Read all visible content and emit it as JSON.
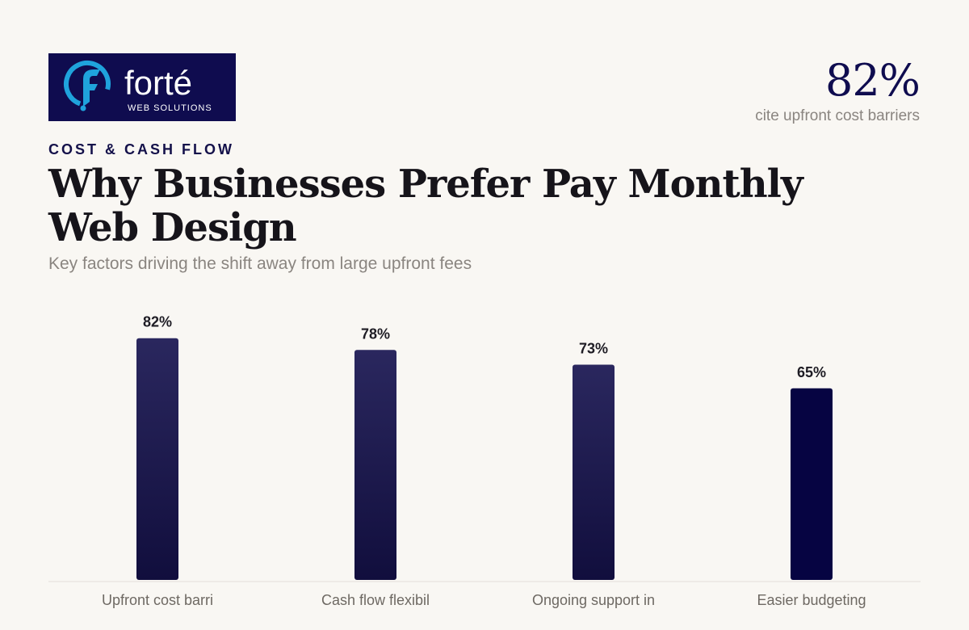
{
  "brand": {
    "name": "forté",
    "tagline": "WEB SOLUTIONS",
    "background_color": "#0f0c4f",
    "accent_color": "#1fa3dc",
    "icon": "f-swoosh-logo-icon"
  },
  "hero_stat": {
    "value": "82%",
    "caption": "cite upfront cost barriers"
  },
  "eyebrow": "COST & CASH FLOW",
  "title": "Why Businesses Prefer Pay Monthly Web Design",
  "subtitle": "Key factors driving the shift away from large upfront fees",
  "chart_data": {
    "type": "bar",
    "categories": [
      "Upfront cost barri",
      "Cash flow flexibil",
      "Ongoing support in",
      "Easier budgeting"
    ],
    "values": [
      82,
      78,
      73,
      65
    ],
    "value_labels": [
      "82%",
      "78%",
      "73%",
      "65%"
    ],
    "title": "",
    "xlabel": "",
    "ylabel": "",
    "ylim": [
      0,
      100
    ],
    "grid": false,
    "legend": "none",
    "colors": {
      "bar_top": "#2a275e",
      "bar_bottom": "#110e3d",
      "bar_highlight": "#060442",
      "axis": "#e2ded8"
    }
  }
}
